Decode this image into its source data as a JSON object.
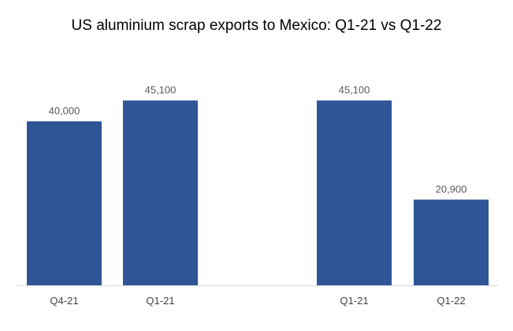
{
  "chart_data": {
    "type": "bar",
    "title": "US aluminium scrap exports to Mexico: Q1-21 vs Q1-22",
    "categories": [
      "Q4-21",
      "Q1-21",
      "Q1-21",
      "Q1-22"
    ],
    "values": [
      40000,
      45100,
      45100,
      20900
    ],
    "value_labels": [
      "40,000",
      "45,100",
      "45,100",
      "20,900"
    ],
    "bar_color": "#2F5597",
    "ylim": [
      0,
      50000
    ],
    "grid": false,
    "legend": "none"
  }
}
